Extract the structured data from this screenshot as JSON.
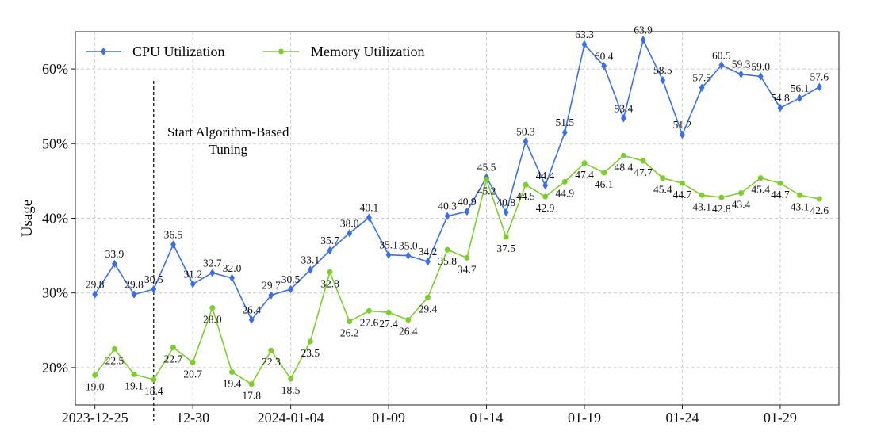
{
  "chart_data": {
    "type": "line",
    "ylabel": "Usage",
    "x_tick_labels": [
      "2023-12-25",
      "12-30",
      "2024-01-04",
      "01-09",
      "01-14",
      "01-19",
      "01-24",
      "01-29"
    ],
    "x_tick_dates": [
      "2023-12-25",
      "2023-12-30",
      "2024-01-04",
      "2024-01-09",
      "2024-01-14",
      "2024-01-19",
      "2024-01-24",
      "2024-01-29"
    ],
    "y_tick_labels": [
      "20%",
      "30%",
      "40%",
      "50%",
      "60%"
    ],
    "y_ticks": [
      20,
      30,
      40,
      50,
      60
    ],
    "ylim": [
      15,
      65
    ],
    "xlim": [
      "2023-12-24",
      "2024-02-01"
    ],
    "grid": true,
    "legend_position": "top-left",
    "annotation": {
      "date": "2023-12-28",
      "lines": [
        "Start Algorithm-Based",
        "Tuning"
      ]
    },
    "x": [
      "2023-12-25",
      "2023-12-26",
      "2023-12-27",
      "2023-12-28",
      "2023-12-29",
      "2023-12-30",
      "2023-12-31",
      "2024-01-01",
      "2024-01-02",
      "2024-01-03",
      "2024-01-04",
      "2024-01-05",
      "2024-01-06",
      "2024-01-07",
      "2024-01-08",
      "2024-01-09",
      "2024-01-10",
      "2024-01-11",
      "2024-01-12",
      "2024-01-13",
      "2024-01-14",
      "2024-01-15",
      "2024-01-16",
      "2024-01-17",
      "2024-01-18",
      "2024-01-19",
      "2024-01-20",
      "2024-01-21",
      "2024-01-22",
      "2024-01-23",
      "2024-01-24",
      "2024-01-25",
      "2024-01-26",
      "2024-01-27",
      "2024-01-28",
      "2024-01-29",
      "2024-01-30",
      "2024-01-31"
    ],
    "series": [
      {
        "name": "CPU Utilization",
        "color": "#3b6fe6",
        "marker": "diamond",
        "values": [
          29.8,
          33.9,
          29.8,
          30.5,
          36.5,
          31.2,
          32.7,
          32.0,
          26.4,
          29.7,
          30.5,
          33.1,
          35.7,
          38.0,
          40.1,
          35.1,
          35.0,
          34.2,
          40.3,
          40.9,
          45.5,
          40.8,
          50.3,
          44.4,
          51.5,
          63.3,
          60.4,
          53.4,
          63.9,
          58.5,
          51.2,
          57.5,
          60.5,
          59.3,
          59.0,
          54.8,
          56.1,
          57.6
        ],
        "labels": [
          "29.8",
          "33.9",
          "29.8",
          "30.5",
          "36.5",
          "31.2",
          "32.7",
          "32.0",
          "26.4",
          "29.7",
          "30.5",
          "33.1",
          "35.7",
          "38.0",
          "40.1",
          "35.1",
          "35.0",
          "34.2",
          "40.3",
          "40.9",
          "45.5",
          "40.8",
          "50.3",
          "44.4",
          "51.5",
          "63.3",
          "60.4",
          "53.4",
          "63.9",
          "58.5",
          "51.2",
          "57.5",
          "60.5",
          "59.3",
          "59.0",
          "54.8",
          "56.1",
          "57.6"
        ]
      },
      {
        "name": "Memory Utilization",
        "color": "#7ccf2a",
        "marker": "circle",
        "values": [
          19.0,
          22.5,
          19.1,
          18.4,
          22.7,
          20.7,
          28.0,
          19.4,
          17.8,
          22.3,
          18.5,
          23.5,
          32.8,
          26.2,
          27.6,
          27.4,
          26.4,
          29.4,
          35.8,
          34.7,
          45.2,
          37.5,
          44.5,
          42.9,
          44.9,
          47.4,
          46.1,
          48.4,
          47.7,
          45.4,
          44.7,
          43.1,
          42.8,
          43.4,
          45.4,
          44.7,
          43.1,
          42.6
        ],
        "labels": [
          "19.0",
          "22.5",
          "19.1",
          "18.4",
          "22.7",
          "20.7",
          "28.0",
          "19.4",
          "17.8",
          "22.3",
          "18.5",
          "23.5",
          "32.8",
          "26.2",
          "27.6",
          "27.4",
          "26.4",
          "29.4",
          "35.8",
          "34.7",
          "45.2",
          "37.5",
          "44.5",
          "42.9",
          "44.9",
          "47.4",
          "46.1",
          "48.4",
          "47.7",
          "45.4",
          "44.7",
          "43.1",
          "42.8",
          "43.4",
          "45.4",
          "44.7",
          "43.1",
          "42.6"
        ]
      }
    ]
  }
}
